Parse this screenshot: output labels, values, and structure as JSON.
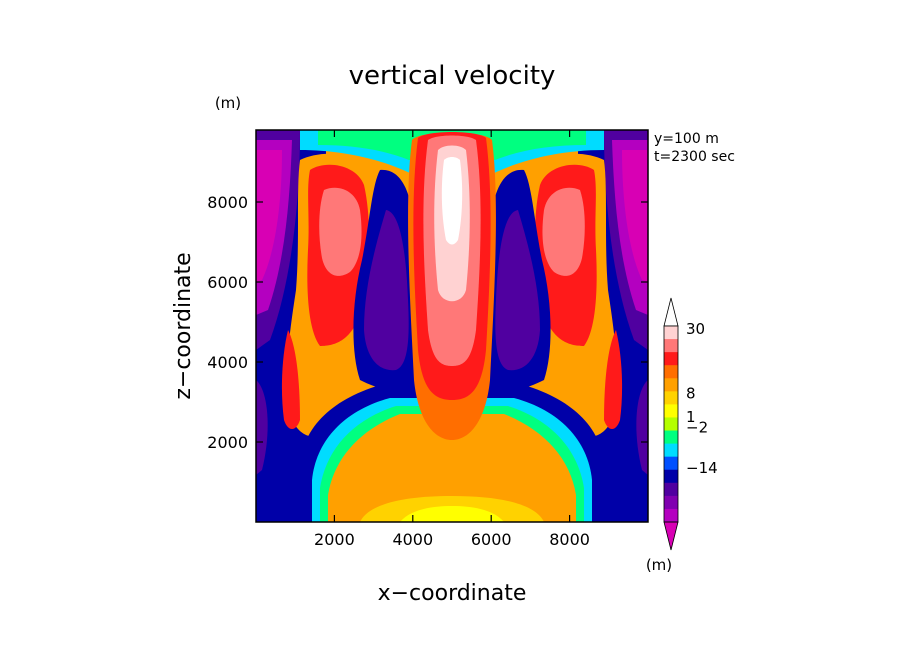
{
  "chart_data": {
    "type": "heatmap",
    "title": "vertical velocity",
    "xlabel": "x−coordinate",
    "ylabel": "z−coordinate",
    "y_unit": "(m)",
    "colorbar_unit": "(m)",
    "annotations": [
      "y=100 m",
      "t=2300 sec"
    ],
    "xlim": [
      0,
      10000
    ],
    "ylim": [
      0,
      9800
    ],
    "x_ticks": [
      {
        "value": 2000,
        "label": "2000"
      },
      {
        "value": 4000,
        "label": "4000"
      },
      {
        "value": 6000,
        "label": "6000"
      },
      {
        "value": 8000,
        "label": "8000"
      }
    ],
    "y_ticks": [
      {
        "value": 2000,
        "label": "2000"
      },
      {
        "value": 4000,
        "label": "4000"
      },
      {
        "value": 6000,
        "label": "6000"
      },
      {
        "value": 8000,
        "label": "8000"
      }
    ],
    "colorbar": {
      "labels": [
        {
          "value": 30,
          "label": "30"
        },
        {
          "value": 8,
          "label": "8"
        },
        {
          "value": 1,
          "label": "1"
        },
        {
          "value": -2,
          "label": "−2"
        },
        {
          "value": -14,
          "label": "−14"
        }
      ],
      "colors_top_to_bottom": [
        "#ffffff",
        "#ffd2d2",
        "#ff7878",
        "#ff1a1a",
        "#ff6e00",
        "#ffa000",
        "#ffd200",
        "#ffff00",
        "#b4ff00",
        "#00ff80",
        "#00dcff",
        "#0050ff",
        "#0000a8",
        "#5000a0",
        "#8000b0",
        "#b400c0",
        "#d800b4"
      ]
    },
    "field_description_levels": [
      "-16",
      "-14",
      "-10",
      "-6",
      "-2",
      "-1",
      "0",
      "1",
      "2",
      "4",
      "8",
      "15",
      "20",
      "30"
    ]
  }
}
